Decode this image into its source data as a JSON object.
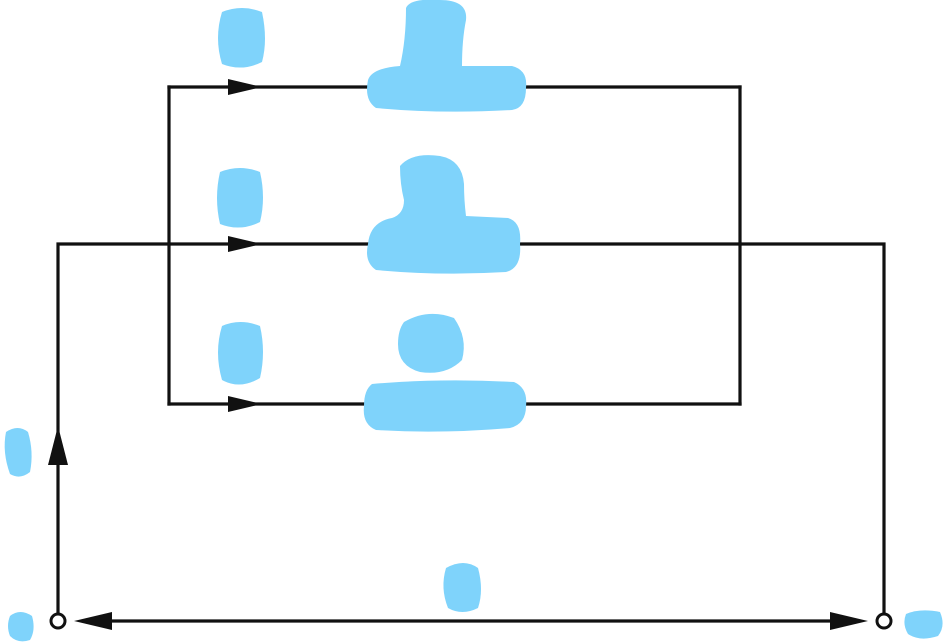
{
  "diagram": {
    "colors": {
      "line": "#111111",
      "redaction": "#7fd3fb",
      "background": "#ffffff"
    },
    "terminals": {
      "left": "",
      "right": ""
    },
    "labels": {
      "branch_1": "",
      "branch_2": "",
      "branch_3": "",
      "left_vertical": "",
      "bottom": ""
    },
    "elements": {
      "element_1": "",
      "element_2": "",
      "element_3": ""
    }
  }
}
